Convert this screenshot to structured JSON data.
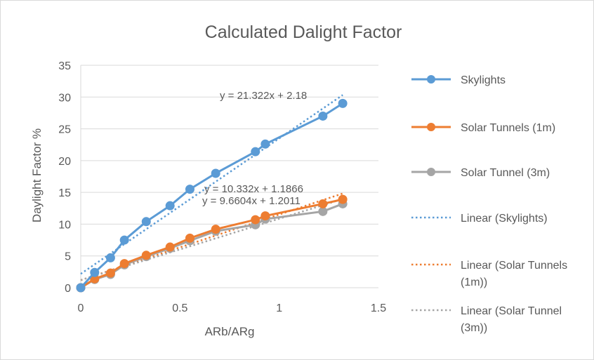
{
  "chart_data": {
    "type": "scatter",
    "title": "Calculated Dalight Factor",
    "xlabel": "ARb/ARg",
    "ylabel": "Daylight Factor %",
    "xlim": [
      0,
      1.5
    ],
    "ylim": [
      0,
      35
    ],
    "x_ticks": [
      "0",
      "0.5",
      "1",
      "1.5"
    ],
    "y_ticks": [
      "0",
      "5",
      "10",
      "15",
      "20",
      "25",
      "30",
      "35"
    ],
    "grid": "horizontal",
    "legend_position": "right",
    "series": [
      {
        "name": "Skylights",
        "color": "#5b9bd5",
        "x": [
          0,
          0.07,
          0.15,
          0.22,
          0.33,
          0.45,
          0.55,
          0.68,
          0.88,
          0.93,
          1.22,
          1.32
        ],
        "y": [
          0,
          2.4,
          4.7,
          7.5,
          10.4,
          12.9,
          15.5,
          18.0,
          21.4,
          22.6,
          27.0,
          29.0
        ]
      },
      {
        "name": "Solar Tunnels (1m)",
        "color": "#ed7d31",
        "x": [
          0,
          0.07,
          0.15,
          0.22,
          0.33,
          0.45,
          0.55,
          0.68,
          0.88,
          0.93,
          1.22,
          1.32
        ],
        "y": [
          0,
          1.4,
          2.3,
          3.8,
          5.1,
          6.4,
          7.8,
          9.2,
          10.7,
          11.3,
          13.2,
          13.9
        ]
      },
      {
        "name": "Solar Tunnel (3m)",
        "color": "#a5a5a5",
        "x": [
          0,
          0.07,
          0.15,
          0.22,
          0.33,
          0.45,
          0.55,
          0.68,
          0.88,
          0.93,
          1.22,
          1.32
        ],
        "y": [
          0,
          1.3,
          2.1,
          3.6,
          4.9,
          6.2,
          7.4,
          8.9,
          9.9,
          10.8,
          12.0,
          13.2
        ]
      }
    ],
    "trendlines": [
      {
        "name": "Linear (Skylights)",
        "legend_lines": [
          "Linear (Skylights)"
        ],
        "color": "#5b9bd5",
        "slope": 21.322,
        "intercept": 2.18,
        "equation": "y = 21.322x + 2.18"
      },
      {
        "name": "Linear (Solar Tunnels (1m))",
        "legend_lines": [
          "Linear (Solar Tunnels",
          "(1m))"
        ],
        "color": "#ed7d31",
        "slope": 10.332,
        "intercept": 1.1866,
        "equation": "y = 10.332x + 1.1866"
      },
      {
        "name": "Linear (Solar Tunnel (3m))",
        "legend_lines": [
          "Linear (Solar Tunnel",
          "(3m))"
        ],
        "color": "#a5a5a5",
        "slope": 9.6604,
        "intercept": 1.2011,
        "equation": "y = 9.6604x + 1.2011"
      }
    ]
  }
}
